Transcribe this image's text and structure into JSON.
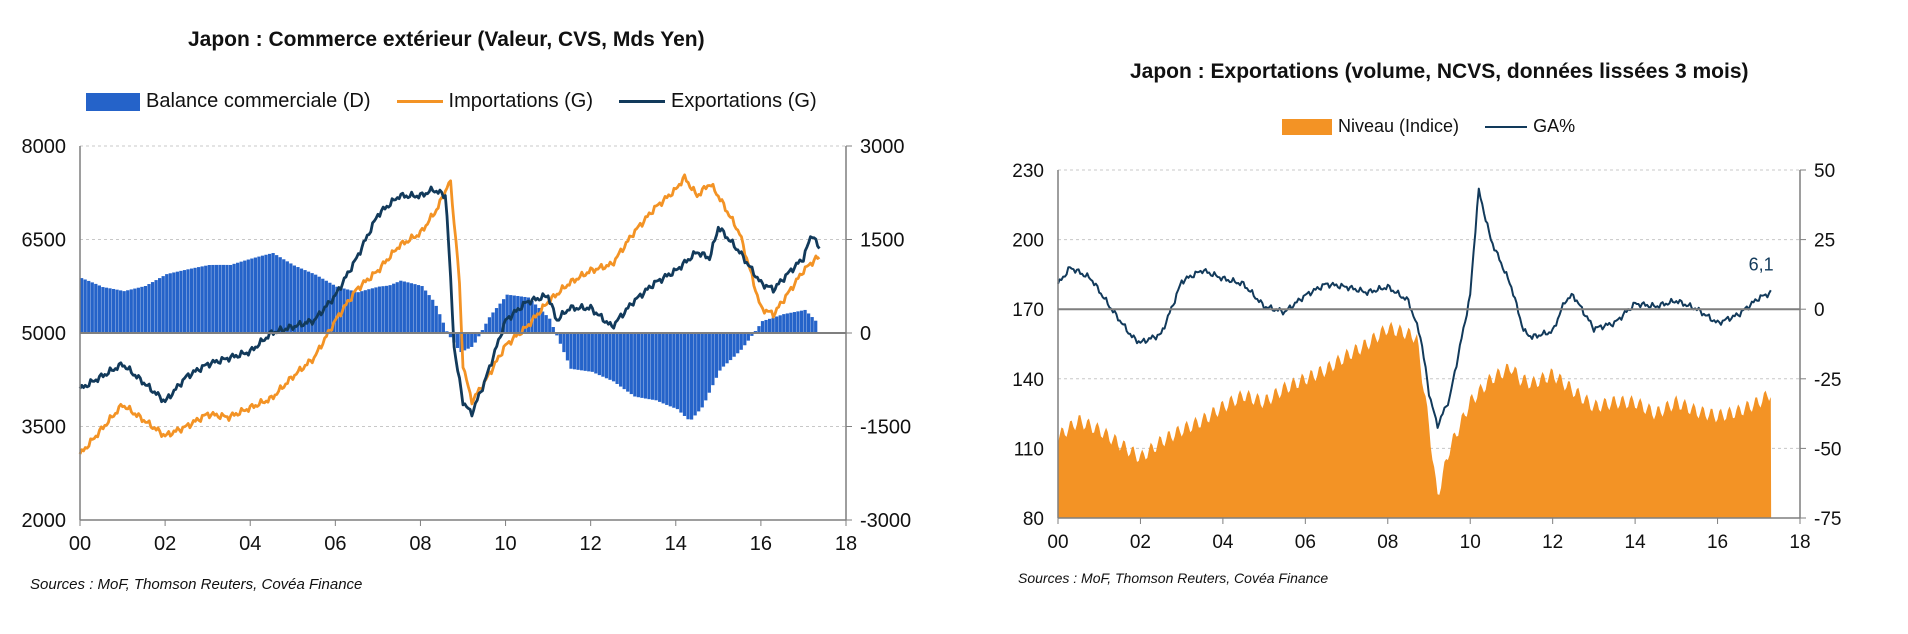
{
  "chart_data": [
    {
      "type": "bar+line",
      "title": "Japon : Commerce  extérieur (Valeur, CVS, Mds Yen)",
      "source": "Sources : MoF, Thomson Reuters, Covéa Finance",
      "legend": [
        {
          "label": "Balance commerciale (D)",
          "kind": "bar",
          "color": "#2563c9"
        },
        {
          "label": "Importations (G)",
          "kind": "line",
          "color": "#f39325"
        },
        {
          "label": "Exportations (G)",
          "kind": "line",
          "color": "#123a5b"
        }
      ],
      "x_ticks": [
        "00",
        "02",
        "04",
        "06",
        "08",
        "10",
        "12",
        "14",
        "16",
        "18"
      ],
      "x_range": [
        2000,
        2018
      ],
      "y_left": {
        "range": [
          2000,
          8000
        ],
        "ticks": [
          "8000",
          "6500",
          "5000",
          "3500",
          "2000"
        ],
        "tick_values": [
          8000,
          6500,
          5000,
          3500,
          2000
        ]
      },
      "y_right": {
        "range": [
          -3000,
          3000
        ],
        "ticks": [
          "3000",
          "1500",
          "0",
          "-1500",
          "-3000"
        ],
        "tick_values": [
          3000,
          1500,
          0,
          -1500,
          -3000
        ]
      },
      "series": [
        {
          "name": "Importations (G)",
          "axis": "left",
          "color": "#f39325",
          "x": [
            2000,
            2000.5,
            2001,
            2001.5,
            2002,
            2002.5,
            2003,
            2003.5,
            2004,
            2004.5,
            2005,
            2005.5,
            2006,
            2006.5,
            2007,
            2007.5,
            2008,
            2008.4,
            2008.7,
            2008.9,
            2009,
            2009.2,
            2009.5,
            2010,
            2010.5,
            2011,
            2011.5,
            2012,
            2012.5,
            2013,
            2013.5,
            2014,
            2014.2,
            2014.5,
            2014.8,
            2015,
            2015.5,
            2016,
            2016.3,
            2016.7,
            2017,
            2017.3,
            2017.4
          ],
          "y": [
            3050,
            3450,
            3850,
            3600,
            3350,
            3500,
            3700,
            3650,
            3800,
            3950,
            4300,
            4600,
            5200,
            5700,
            6000,
            6400,
            6600,
            7000,
            7450,
            6000,
            4500,
            3900,
            4200,
            4800,
            5100,
            5500,
            5800,
            6000,
            6100,
            6600,
            7000,
            7300,
            7500,
            7200,
            7400,
            7200,
            6600,
            5400,
            5300,
            5700,
            6000,
            6200,
            6200
          ]
        },
        {
          "name": "Exportations (G)",
          "axis": "left",
          "color": "#123a5b",
          "x": [
            2000,
            2000.5,
            2001,
            2001.5,
            2002,
            2002.5,
            2003,
            2003.5,
            2004,
            2004.5,
            2005,
            2005.5,
            2006,
            2006.5,
            2007,
            2007.5,
            2008,
            2008.3,
            2008.6,
            2008.8,
            2009,
            2009.2,
            2009.5,
            2010,
            2010.5,
            2011,
            2011.2,
            2011.5,
            2012,
            2012.5,
            2013,
            2013.5,
            2014,
            2014.5,
            2014.8,
            2015,
            2015.5,
            2016,
            2016.3,
            2016.7,
            2017,
            2017.2,
            2017.4
          ],
          "y": [
            4100,
            4300,
            4500,
            4200,
            3900,
            4300,
            4500,
            4600,
            4700,
            5000,
            5100,
            5200,
            5600,
            6200,
            6900,
            7200,
            7200,
            7300,
            7200,
            4700,
            3900,
            3700,
            4200,
            5200,
            5500,
            5600,
            5200,
            5400,
            5400,
            5100,
            5500,
            5800,
            6000,
            6300,
            6200,
            6700,
            6300,
            5800,
            5700,
            6000,
            6200,
            6600,
            6300
          ]
        },
        {
          "name": "Balance commerciale (D)",
          "axis": "right",
          "kind": "bar",
          "color": "#2563c9",
          "x": [
            2000,
            2000.5,
            2001,
            2001.5,
            2002,
            2002.5,
            2003,
            2003.5,
            2004,
            2004.5,
            2005,
            2005.5,
            2006,
            2006.5,
            2007,
            2007.5,
            2008,
            2008.3,
            2008.6,
            2008.9,
            2009.2,
            2009.6,
            2010,
            2010.5,
            2011,
            2011.5,
            2012,
            2012.5,
            2013,
            2013.5,
            2014,
            2014.3,
            2014.6,
            2015,
            2015.5,
            2016,
            2016.5,
            2017,
            2017.3
          ],
          "y": [
            950,
            750,
            650,
            700,
            850,
            900,
            950,
            950,
            1050,
            1150,
            1000,
            900,
            750,
            700,
            850,
            950,
            800,
            500,
            0,
            -300,
            -200,
            250,
            550,
            500,
            200,
            -500,
            -550,
            -700,
            -950,
            -1050,
            -1250,
            -1500,
            -1300,
            -700,
            -300,
            200,
            300,
            350,
            150
          ]
        }
      ]
    },
    {
      "type": "area+line",
      "title": "Japon : Exportations (volume, NCVS, données lissées 3 mois)",
      "source": "Sources : MoF, Thomson Reuters, Covéa Finance",
      "legend": [
        {
          "label": "Niveau (Indice)",
          "kind": "area",
          "color": "#f39325"
        },
        {
          "label": "GA%",
          "kind": "line",
          "color": "#123a5b"
        }
      ],
      "annotation": "6,1",
      "x_ticks": [
        "00",
        "02",
        "04",
        "06",
        "08",
        "10",
        "12",
        "14",
        "16",
        "18"
      ],
      "x_range": [
        2000,
        2018
      ],
      "y_left": {
        "range": [
          80,
          230
        ],
        "ticks": [
          "230",
          "200",
          "170",
          "140",
          "110",
          "80"
        ],
        "tick_values": [
          230,
          200,
          170,
          140,
          110,
          80
        ]
      },
      "y_right": {
        "range": [
          -75,
          50
        ],
        "ticks": [
          "50",
          "25",
          "0",
          "-25",
          "-50",
          "-75"
        ],
        "tick_values": [
          50,
          25,
          0,
          -25,
          -50,
          -75
        ]
      },
      "series": [
        {
          "name": "Niveau (Indice)",
          "axis": "left",
          "kind": "area",
          "color": "#f39325",
          "x": [
            2000,
            2000.5,
            2001,
            2001.5,
            2002,
            2002.5,
            2003,
            2003.5,
            2004,
            2004.5,
            2005,
            2005.5,
            2006,
            2006.5,
            2007,
            2007.5,
            2008,
            2008.4,
            2008.7,
            2009,
            2009.2,
            2009.5,
            2010,
            2010.5,
            2011,
            2011.2,
            2011.5,
            2012,
            2012.5,
            2013,
            2013.5,
            2014,
            2014.5,
            2015,
            2015.5,
            2016,
            2016.5,
            2017,
            2017.3
          ],
          "y": [
            115,
            122,
            118,
            112,
            106,
            113,
            118,
            122,
            128,
            133,
            130,
            136,
            140,
            144,
            150,
            155,
            162,
            160,
            158,
            120,
            89,
            110,
            130,
            140,
            145,
            140,
            138,
            142,
            135,
            128,
            130,
            130,
            125,
            130,
            126,
            124,
            126,
            130,
            134
          ]
        },
        {
          "name": "GA%",
          "axis": "right",
          "color": "#123a5b",
          "x": [
            2000,
            2000.3,
            2000.8,
            2001.3,
            2001.8,
            2002,
            2002.5,
            2002.8,
            2003,
            2003.5,
            2004,
            2004.5,
            2005,
            2005.5,
            2006,
            2006.5,
            2007,
            2007.5,
            2008,
            2008.5,
            2008.8,
            2009,
            2009.2,
            2009.5,
            2010,
            2010.2,
            2010.5,
            2011,
            2011.3,
            2011.5,
            2012,
            2012.3,
            2012.5,
            2013,
            2013.5,
            2014,
            2014.5,
            2015,
            2015.5,
            2016,
            2016.5,
            2017,
            2017.3
          ],
          "y": [
            9,
            15,
            11,
            0,
            -10,
            -12,
            -9,
            2,
            10,
            14,
            11,
            9,
            1,
            -1,
            5,
            9,
            8,
            6,
            8,
            3,
            -10,
            -30,
            -42,
            -32,
            5,
            43,
            25,
            8,
            -8,
            -10,
            -8,
            3,
            5,
            -7,
            -5,
            2,
            1,
            3,
            0,
            -5,
            -2,
            4,
            6
          ]
        }
      ]
    }
  ]
}
